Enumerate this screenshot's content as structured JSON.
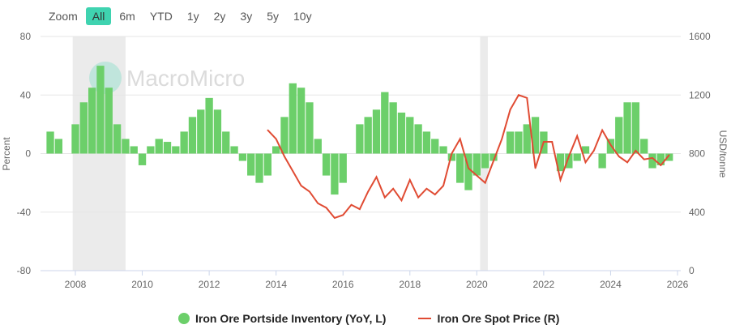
{
  "zoom": {
    "label": "Zoom",
    "buttons": [
      "All",
      "6m",
      "YTD",
      "1y",
      "2y",
      "3y",
      "5y",
      "10y"
    ],
    "active": "All"
  },
  "watermark": "MacroMicro",
  "colors": {
    "inventory": "#6ccf6a",
    "price": "#e04b33",
    "active": "#3fd3b0",
    "recession": "#ebebeb"
  },
  "chart_data": {
    "type": "bar+line",
    "ylabel_left": "Percent",
    "ylabel_right": "USD/tonne",
    "ylim_left": [
      -80,
      80
    ],
    "ylim_right": [
      0,
      1600
    ],
    "yticks_left": [
      "80",
      "40",
      "0",
      "-40",
      "-80"
    ],
    "yticks_right": [
      "1600",
      "1200",
      "800",
      "400",
      "0"
    ],
    "xlim": [
      2007.0,
      2026.1
    ],
    "xticks": [
      "2008",
      "2010",
      "2012",
      "2014",
      "2016",
      "2018",
      "2020",
      "2022",
      "2024",
      "2026"
    ],
    "shaded_periods": [
      [
        2007.92,
        2009.5
      ],
      [
        2020.1,
        2020.33
      ]
    ],
    "series": [
      {
        "name": "Iron Ore Portside Inventory (YoY, L)",
        "type": "bar",
        "x_start": 2007.25,
        "x_step": 0.25,
        "values": [
          15,
          10,
          0,
          20,
          35,
          45,
          60,
          45,
          20,
          10,
          5,
          -8,
          5,
          10,
          8,
          5,
          15,
          25,
          30,
          38,
          30,
          15,
          5,
          -5,
          -15,
          -20,
          -15,
          5,
          25,
          48,
          45,
          35,
          10,
          -15,
          -28,
          -20,
          0,
          20,
          25,
          30,
          42,
          35,
          28,
          25,
          20,
          15,
          10,
          5,
          -5,
          -20,
          -25,
          -15,
          -10,
          -5,
          0,
          15,
          15,
          20,
          25,
          15,
          0,
          -12,
          -10,
          -5,
          5,
          0,
          -10,
          10,
          25,
          35,
          35,
          10,
          -10,
          -8,
          -5
        ]
      },
      {
        "name": "Iron Ore Spot Price (R)",
        "type": "line",
        "x_start": 2013.75,
        "x_step": 0.25,
        "values": [
          960,
          900,
          780,
          680,
          580,
          540,
          460,
          430,
          360,
          380,
          450,
          420,
          540,
          640,
          500,
          560,
          480,
          620,
          500,
          560,
          520,
          580,
          800,
          900,
          700,
          650,
          600,
          750,
          900,
          1100,
          1200,
          1180,
          700,
          880,
          880,
          620,
          780,
          920,
          740,
          820,
          960,
          860,
          780,
          740,
          820,
          760,
          770,
          720,
          790
        ]
      }
    ]
  }
}
